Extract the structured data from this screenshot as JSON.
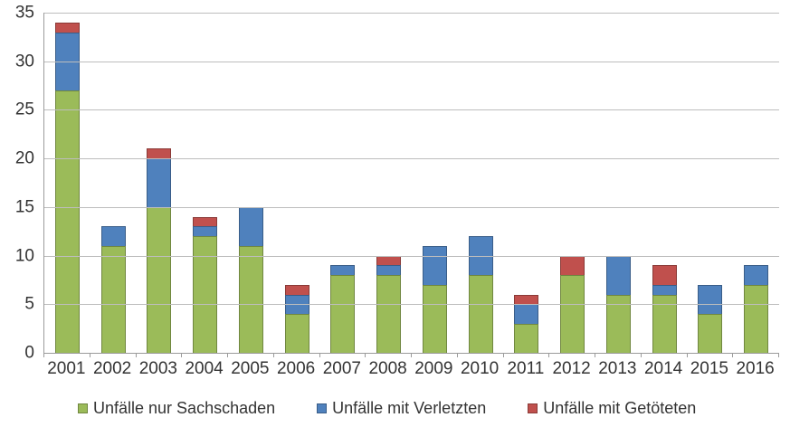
{
  "chart_data": {
    "type": "bar",
    "stacked": true,
    "title": "",
    "xlabel": "",
    "ylabel": "",
    "categories": [
      "2001",
      "2002",
      "2003",
      "2004",
      "2005",
      "2006",
      "2007",
      "2008",
      "2009",
      "2010",
      "2011",
      "2012",
      "2013",
      "2014",
      "2015",
      "2016"
    ],
    "series": [
      {
        "name": "Unfälle nur Sachschaden",
        "color": "#9bbb59",
        "values": [
          27,
          11,
          15,
          12,
          11,
          4,
          8,
          8,
          7,
          8,
          3,
          8,
          6,
          6,
          4,
          7
        ]
      },
      {
        "name": "Unfälle mit Verletzten",
        "color": "#4f81bd",
        "values": [
          6,
          2,
          5,
          1,
          4,
          2,
          1,
          1,
          4,
          4,
          2,
          0,
          4,
          1,
          3,
          2
        ]
      },
      {
        "name": "Unfälle mit Getöteten",
        "color": "#c0504d",
        "values": [
          1,
          0,
          1,
          1,
          0,
          1,
          0,
          1,
          0,
          0,
          1,
          2,
          0,
          2,
          0,
          0
        ]
      }
    ],
    "totals": [
      34,
      13,
      21,
      14,
      15,
      7,
      9,
      10,
      11,
      12,
      6,
      10,
      10,
      9,
      7,
      9
    ],
    "ylim": [
      0,
      35
    ],
    "yticks": [
      0,
      5,
      10,
      15,
      20,
      25,
      30,
      35
    ],
    "grid": true,
    "legend_position": "bottom"
  }
}
